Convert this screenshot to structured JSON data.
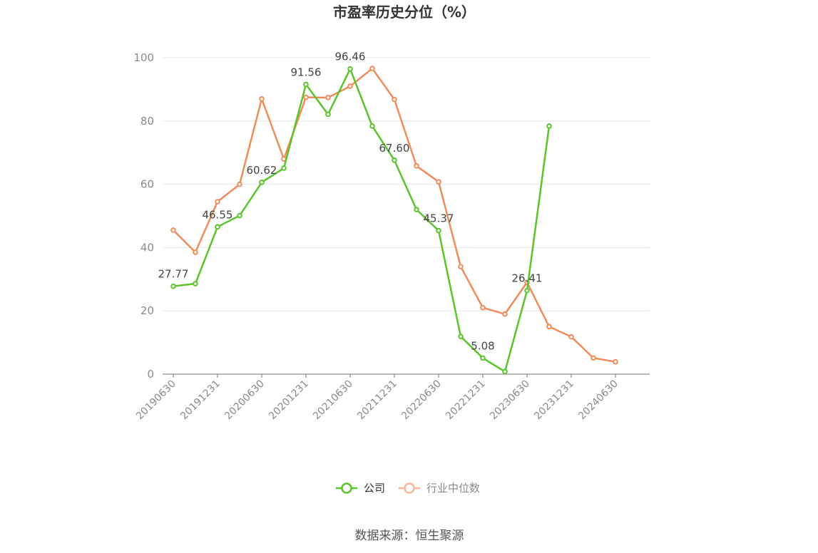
{
  "chart_data": {
    "type": "line",
    "title": "市盈率历史分位（%）",
    "xlabel": "",
    "ylabel": "",
    "ylim": [
      0,
      100
    ],
    "yticks": [
      0,
      20,
      40,
      60,
      80,
      100
    ],
    "x": [
      "20190630",
      "20190930",
      "20191231",
      "20200331",
      "20200630",
      "20200930",
      "20201231",
      "20210331",
      "20210630",
      "20210930",
      "20211231",
      "20220331",
      "20220630",
      "20220930",
      "20221231",
      "20230331",
      "20230630",
      "20230930",
      "20231231",
      "20240331",
      "20240630"
    ],
    "xtick_labels": [
      "20190630",
      "20191231",
      "20200630",
      "20201231",
      "20210630",
      "20211231",
      "20220630",
      "20221231",
      "20230630",
      "20231231",
      "20240630"
    ],
    "grid": true,
    "legend_position": "bottom-center",
    "series": [
      {
        "name": "公司",
        "color": "#5ac42a",
        "values": [
          27.77,
          28.6,
          46.55,
          50.1,
          60.62,
          65.1,
          91.56,
          82.1,
          96.46,
          78.4,
          67.6,
          52.0,
          45.37,
          11.9,
          5.08,
          0.8,
          26.41,
          78.4,
          null,
          null,
          null
        ],
        "labels": [
          "27.77",
          null,
          "46.55",
          null,
          "60.62",
          null,
          "91.56",
          null,
          "96.46",
          null,
          "67.60",
          null,
          "45.37",
          null,
          "5.08",
          null,
          "26.41",
          null,
          null,
          null,
          null
        ]
      },
      {
        "name": "行业中位数",
        "color": "#f08c5a",
        "legend_color": "#f6b89c",
        "values": [
          45.5,
          38.5,
          54.5,
          60.0,
          87.0,
          68.0,
          87.5,
          87.4,
          91.0,
          96.6,
          86.8,
          65.8,
          60.8,
          34.0,
          21.0,
          19.0,
          29.0,
          15.0,
          11.8,
          5.1,
          3.9
        ]
      }
    ]
  },
  "source": "数据来源：恒生聚源"
}
